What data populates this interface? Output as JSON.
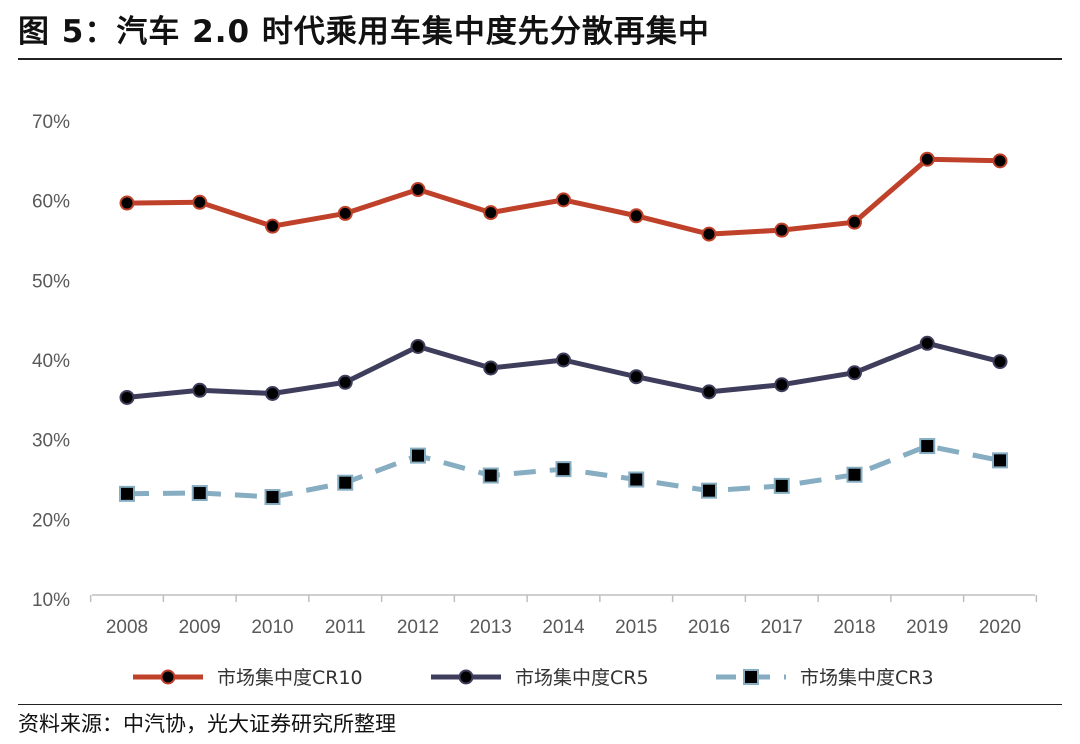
{
  "header": {
    "title": "图 5：汽车 2.0 时代乘用车集中度先分散再集中"
  },
  "footer": {
    "source": "资料来源：中汽协，光大证券研究所整理"
  },
  "chart_data": {
    "type": "line",
    "x": [
      "2008",
      "2009",
      "2010",
      "2011",
      "2012",
      "2013",
      "2014",
      "2015",
      "2016",
      "2017",
      "2018",
      "2019",
      "2020"
    ],
    "series": [
      {
        "name": "市场集中度CR10",
        "color": "#c0412a",
        "marker": "circle",
        "dash": false,
        "values": [
          59.7,
          59.8,
          56.8,
          58.4,
          61.4,
          58.5,
          60.1,
          58.1,
          55.8,
          56.3,
          57.3,
          65.2,
          65.0
        ]
      },
      {
        "name": "市场集中度CR5",
        "color": "#3f3d5c",
        "marker": "circle",
        "dash": false,
        "values": [
          35.3,
          36.2,
          35.8,
          37.2,
          41.7,
          39.0,
          40.0,
          37.9,
          36.0,
          36.9,
          38.4,
          42.1,
          39.8
        ]
      },
      {
        "name": "市场集中度CR3",
        "color": "#86adc2",
        "marker": "square",
        "dash": true,
        "values": [
          23.2,
          23.3,
          22.8,
          24.6,
          28.0,
          25.5,
          26.3,
          25.0,
          23.6,
          24.2,
          25.6,
          29.2,
          27.4
        ]
      }
    ],
    "ylim": [
      10,
      70
    ],
    "yticks": [
      "10%",
      "20%",
      "30%",
      "40%",
      "50%",
      "60%",
      "70%"
    ],
    "grid": false,
    "legend_position": "bottom"
  }
}
